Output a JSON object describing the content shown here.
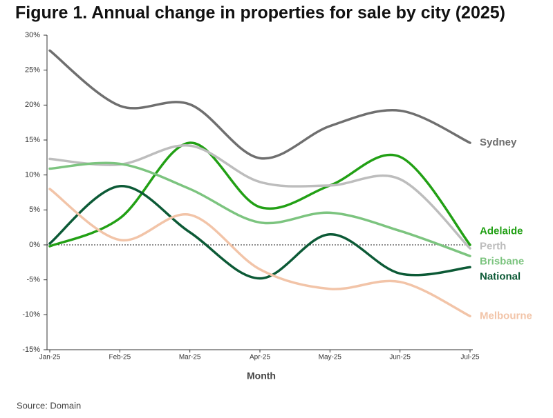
{
  "chart_data": {
    "type": "line",
    "title": "Figure 1. Annual change in properties for sale by city (2025)",
    "x_label": "Month",
    "source": "Source: Domain",
    "categories": [
      "Jan-25",
      "Feb-25",
      "Mar-25",
      "Apr-25",
      "May-25",
      "Jun-25",
      "Jul-25"
    ],
    "series": [
      {
        "name": "Sydney",
        "color": "#6f6f6f",
        "values": [
          27.8,
          19.9,
          20.1,
          12.4,
          17.0,
          19.2,
          14.6
        ]
      },
      {
        "name": "Adelaide",
        "color": "#22a015",
        "values": [
          -0.2,
          3.8,
          14.6,
          5.4,
          8.5,
          12.6,
          0.0
        ]
      },
      {
        "name": "Perth",
        "color": "#bdbdbd",
        "values": [
          12.3,
          11.5,
          14.2,
          9.0,
          8.5,
          9.4,
          -0.5
        ]
      },
      {
        "name": "Brisbane",
        "color": "#7cc47f",
        "values": [
          10.9,
          11.6,
          8.0,
          3.2,
          4.6,
          2.0,
          -1.6
        ]
      },
      {
        "name": "National",
        "color": "#0c5a36",
        "values": [
          0.2,
          8.4,
          1.8,
          -4.8,
          1.5,
          -4.1,
          -3.2
        ]
      },
      {
        "name": "Melbourne",
        "color": "#f2c4a8",
        "values": [
          8.0,
          0.7,
          4.3,
          -3.5,
          -6.3,
          -5.3,
          -10.2
        ]
      }
    ],
    "ylim": [
      -15,
      30
    ],
    "yticks": [
      {
        "value": -15,
        "label": "-15%"
      },
      {
        "value": -10,
        "label": "-10%"
      },
      {
        "value": -5,
        "label": "-5%"
      },
      {
        "value": 0,
        "label": "0%"
      },
      {
        "value": 5,
        "label": "5%"
      },
      {
        "value": 10,
        "label": "10%"
      },
      {
        "value": 15,
        "label": "15%"
      },
      {
        "value": 20,
        "label": "20%"
      },
      {
        "value": 25,
        "label": "25%"
      },
      {
        "value": 30,
        "label": "30%"
      }
    ],
    "zero_line": true,
    "legend": "line-end"
  }
}
